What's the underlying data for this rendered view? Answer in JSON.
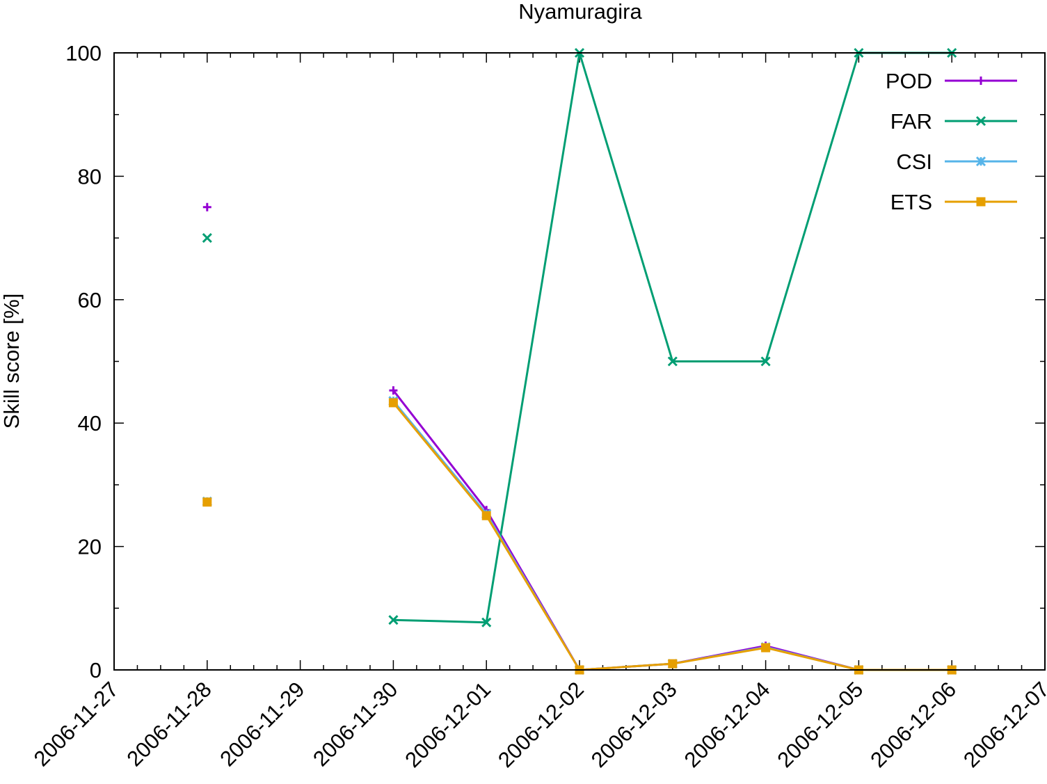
{
  "chart_data": {
    "type": "line",
    "title": "Nyamuragira",
    "xlabel": "",
    "ylabel": "Skill score [%]",
    "x_ticks": [
      "2006-11-27",
      "2006-11-28",
      "2006-11-29",
      "2006-11-30",
      "2006-12-01",
      "2006-12-02",
      "2006-12-03",
      "2006-12-04",
      "2006-12-05",
      "2006-12-06",
      "2006-12-07"
    ],
    "y_ticks": [
      0,
      20,
      40,
      60,
      80,
      100
    ],
    "xlim": [
      "2006-11-27",
      "2006-12-07"
    ],
    "ylim": [
      0,
      100
    ],
    "grid": false,
    "legend_position": "top-right",
    "series": [
      {
        "name": "POD",
        "color": "#9400d3",
        "marker": "plus",
        "points": [
          {
            "x": "2006-11-28",
            "y": 75
          },
          {
            "x": "2006-11-30",
            "y": 45.3
          },
          {
            "x": "2006-12-01",
            "y": 25.9
          },
          {
            "x": "2006-12-02",
            "y": 0
          },
          {
            "x": "2006-12-03",
            "y": 1.0
          },
          {
            "x": "2006-12-04",
            "y": 3.9
          },
          {
            "x": "2006-12-05",
            "y": 0
          },
          {
            "x": "2006-12-06",
            "y": 0
          }
        ]
      },
      {
        "name": "FAR",
        "color": "#009e73",
        "marker": "cross",
        "points": [
          {
            "x": "2006-11-28",
            "y": 70
          },
          {
            "x": "2006-11-30",
            "y": 8.1
          },
          {
            "x": "2006-12-01",
            "y": 7.7
          },
          {
            "x": "2006-12-02",
            "y": 100
          },
          {
            "x": "2006-12-03",
            "y": 50
          },
          {
            "x": "2006-12-04",
            "y": 50
          },
          {
            "x": "2006-12-05",
            "y": 100
          },
          {
            "x": "2006-12-06",
            "y": 100
          }
        ]
      },
      {
        "name": "CSI",
        "color": "#56b4e9",
        "marker": "star",
        "points": [
          {
            "x": "2006-11-28",
            "y": 27.3
          },
          {
            "x": "2006-11-30",
            "y": 43.6
          },
          {
            "x": "2006-12-01",
            "y": 25.3
          },
          {
            "x": "2006-12-02",
            "y": 0
          },
          {
            "x": "2006-12-03",
            "y": 1.0
          },
          {
            "x": "2006-12-04",
            "y": 3.7
          },
          {
            "x": "2006-12-05",
            "y": 0
          },
          {
            "x": "2006-12-06",
            "y": 0
          }
        ]
      },
      {
        "name": "ETS",
        "color": "#e69f00",
        "marker": "square",
        "points": [
          {
            "x": "2006-11-28",
            "y": 27.2
          },
          {
            "x": "2006-11-30",
            "y": 43.3
          },
          {
            "x": "2006-12-01",
            "y": 25.0
          },
          {
            "x": "2006-12-02",
            "y": 0
          },
          {
            "x": "2006-12-03",
            "y": 1.0
          },
          {
            "x": "2006-12-04",
            "y": 3.6
          },
          {
            "x": "2006-12-05",
            "y": 0
          },
          {
            "x": "2006-12-06",
            "y": 0
          }
        ]
      }
    ]
  }
}
